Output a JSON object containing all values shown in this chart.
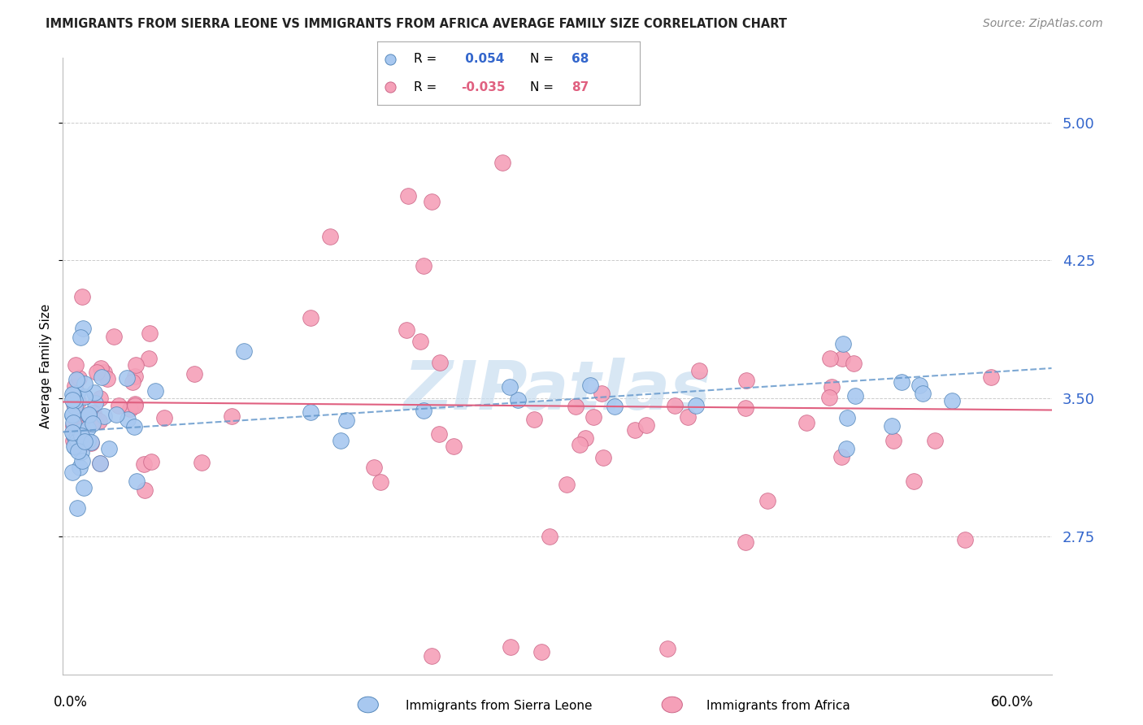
{
  "title": "IMMIGRANTS FROM SIERRA LEONE VS IMMIGRANTS FROM AFRICA AVERAGE FAMILY SIZE CORRELATION CHART",
  "source": "Source: ZipAtlas.com",
  "ylabel": "Average Family Size",
  "yticks": [
    2.75,
    3.5,
    4.25,
    5.0
  ],
  "ylim": [
    2.0,
    5.35
  ],
  "xlim": [
    -0.005,
    0.625
  ],
  "legend_blue_r": "0.054",
  "legend_blue_n": "68",
  "legend_pink_r": "-0.035",
  "legend_pink_n": "87",
  "blue_color": "#a8c8f0",
  "pink_color": "#f5a0b8",
  "blue_line_color": "#6699cc",
  "pink_line_color": "#e06080",
  "blue_marker_edge": "#5588bb",
  "pink_marker_edge": "#cc6688",
  "grid_color": "#cccccc",
  "watermark": "ZIPatlas",
  "watermark_color": "#c8ddf0",
  "title_color": "#222222",
  "source_color": "#888888",
  "tick_label_color": "#3366cc"
}
